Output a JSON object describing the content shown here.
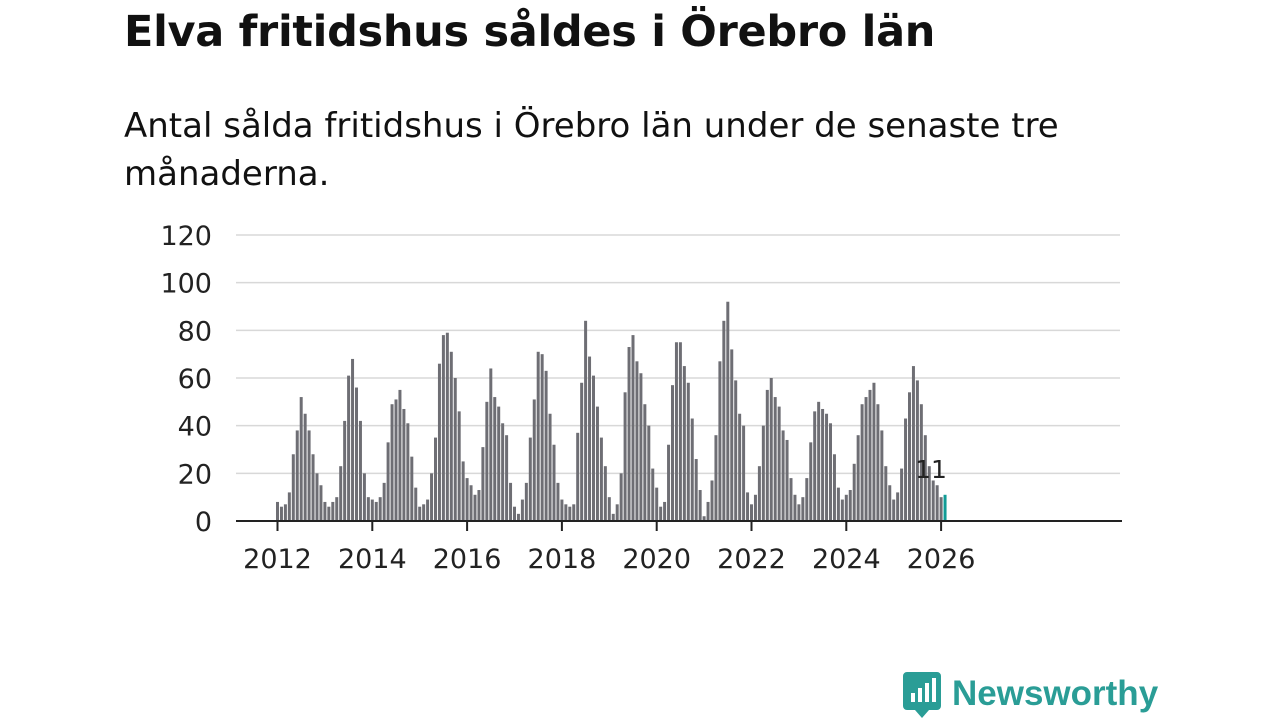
{
  "title": "Elva fritidshus såldes i Örebro län",
  "subtitle": "Antal sålda fritidshus i Örebro län under de senaste tre månaderna.",
  "brand": {
    "name": "Newsworthy",
    "logo_icon": "bar-chart-speech-bubble-icon"
  },
  "colors": {
    "bar": "#6e6e74",
    "highlight": "#129c96",
    "grid": "#d8d8d8",
    "axis": "#222222",
    "brand": "#2a9d96"
  },
  "chart_data": {
    "type": "bar",
    "title": "Elva fritidshus såldes i Örebro län",
    "subtitle": "Antal sålda fritidshus i Örebro län under de senaste tre månaderna.",
    "xlabel": "",
    "ylabel": "",
    "ylim": [
      0,
      120
    ],
    "yticks": [
      0,
      20,
      40,
      60,
      80,
      100,
      120
    ],
    "xticks": [
      "2012",
      "2014",
      "2016",
      "2018",
      "2020",
      "2022",
      "2024",
      "2026"
    ],
    "grid": true,
    "frequency": "monthly, rolling three-month count",
    "start": "2012-01",
    "end": "2026-03",
    "highlight_label": "11",
    "values": [
      8,
      6,
      7,
      12,
      28,
      38,
      52,
      45,
      38,
      28,
      20,
      15,
      8,
      6,
      8,
      10,
      23,
      42,
      61,
      68,
      56,
      42,
      20,
      10,
      9,
      8,
      10,
      16,
      33,
      49,
      51,
      55,
      47,
      41,
      27,
      14,
      6,
      7,
      9,
      20,
      35,
      66,
      78,
      79,
      71,
      60,
      46,
      25,
      18,
      15,
      11,
      13,
      31,
      50,
      64,
      52,
      48,
      41,
      36,
      16,
      6,
      3,
      9,
      16,
      35,
      51,
      71,
      70,
      63,
      45,
      32,
      16,
      9,
      7,
      6,
      7,
      37,
      58,
      84,
      69,
      61,
      48,
      35,
      23,
      10,
      3,
      7,
      20,
      54,
      73,
      78,
      67,
      62,
      49,
      40,
      22,
      14,
      6,
      8,
      32,
      57,
      75,
      75,
      65,
      58,
      43,
      26,
      13,
      2,
      8,
      17,
      36,
      67,
      84,
      92,
      72,
      59,
      45,
      40,
      12,
      7,
      11,
      23,
      40,
      55,
      60,
      52,
      48,
      38,
      34,
      18,
      11,
      7,
      10,
      18,
      33,
      46,
      50,
      47,
      45,
      41,
      28,
      14,
      9,
      11,
      13,
      24,
      36,
      49,
      52,
      55,
      58,
      49,
      38,
      23,
      15,
      9,
      12,
      22,
      43,
      54,
      65,
      59,
      49,
      36,
      23,
      17,
      15,
      10,
      11
    ]
  }
}
